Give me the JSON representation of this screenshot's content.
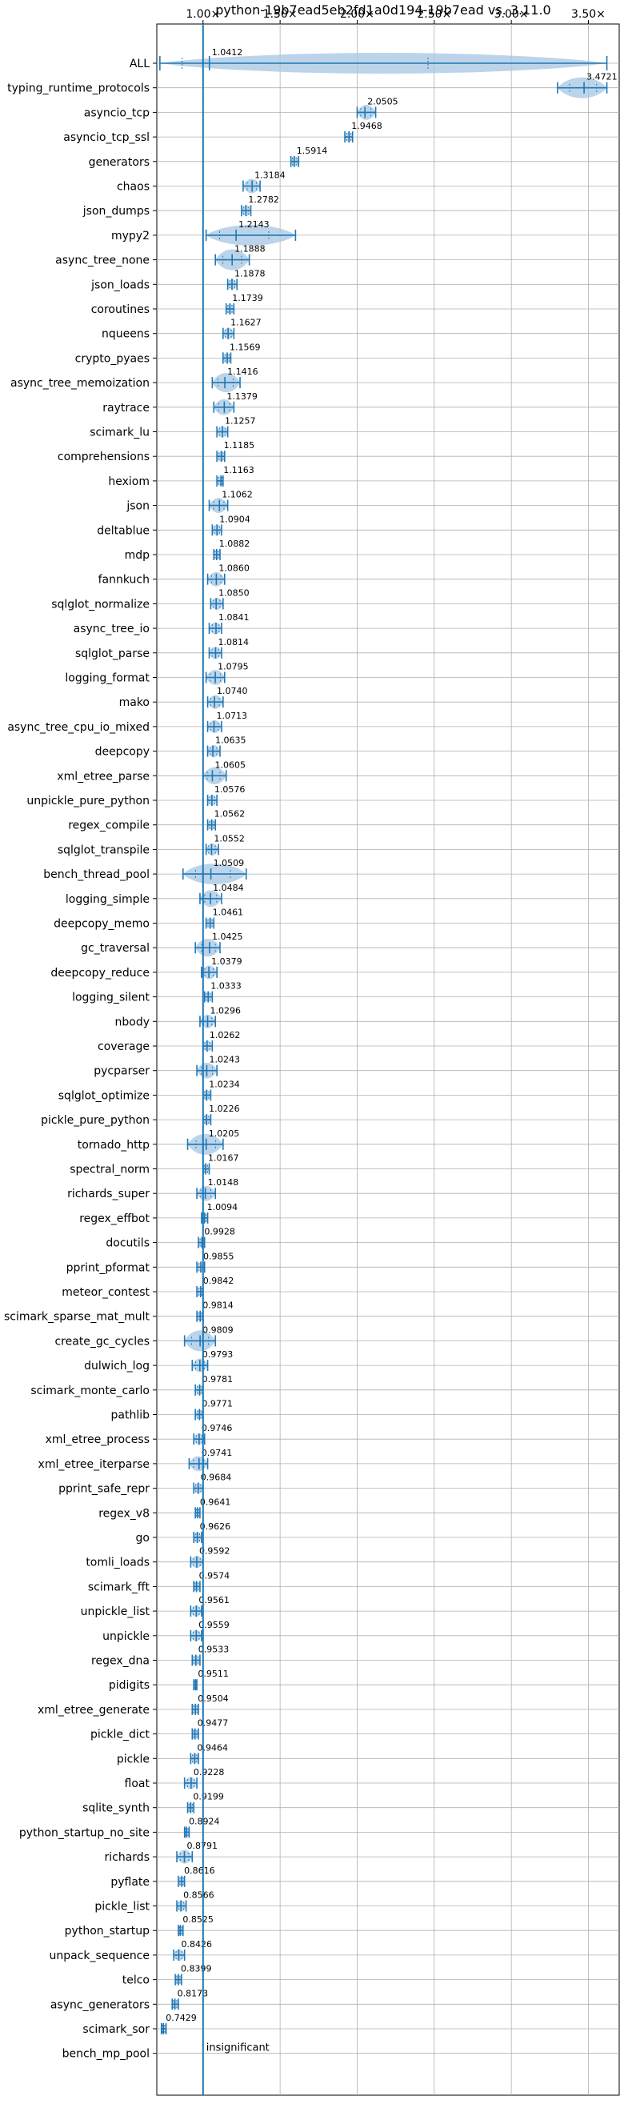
{
  "chart_data": {
    "type": "violin",
    "title": "python-19b7ead5eb2fd1a0d194-19b7ead vs. 3.11.0",
    "x_ticks": [
      "1.00×",
      "1.50×",
      "2.00×",
      "2.50×",
      "3.00×",
      "3.50×"
    ],
    "x_tick_values": [
      1.0,
      1.5,
      2.0,
      2.5,
      3.0,
      3.5
    ],
    "xlim": [
      0.7,
      3.7
    ],
    "reference_line": 1.0,
    "grid": true,
    "benchmarks": [
      {
        "name": "ALL",
        "value": 1.0412,
        "label": "1.0412",
        "min": 0.72,
        "max": 3.62
      },
      {
        "name": "typing_runtime_protocols",
        "value": 3.4721,
        "label": "3.4721",
        "min": 3.3,
        "max": 3.62
      },
      {
        "name": "asyncio_tcp",
        "value": 2.0505,
        "label": "2.0505",
        "min": 2.0,
        "max": 2.12
      },
      {
        "name": "asyncio_tcp_ssl",
        "value": 1.9468,
        "label": "1.9468",
        "min": 1.92,
        "max": 1.97
      },
      {
        "name": "generators",
        "value": 1.5914,
        "label": "1.5914",
        "min": 1.57,
        "max": 1.62
      },
      {
        "name": "chaos",
        "value": 1.3184,
        "label": "1.3184",
        "min": 1.26,
        "max": 1.37
      },
      {
        "name": "json_dumps",
        "value": 1.2782,
        "label": "1.2782",
        "min": 1.25,
        "max": 1.31
      },
      {
        "name": "mypy2",
        "value": 1.2143,
        "label": "1.2143",
        "min": 1.02,
        "max": 1.6
      },
      {
        "name": "async_tree_none",
        "value": 1.1888,
        "label": "1.1888",
        "min": 1.08,
        "max": 1.3
      },
      {
        "name": "json_loads",
        "value": 1.1878,
        "label": "1.1878",
        "min": 1.16,
        "max": 1.22
      },
      {
        "name": "coroutines",
        "value": 1.1739,
        "label": "1.1739",
        "min": 1.15,
        "max": 1.2
      },
      {
        "name": "nqueens",
        "value": 1.1627,
        "label": "1.1627",
        "min": 1.13,
        "max": 1.2
      },
      {
        "name": "crypto_pyaes",
        "value": 1.1569,
        "label": "1.1569",
        "min": 1.13,
        "max": 1.18
      },
      {
        "name": "async_tree_memoization",
        "value": 1.1416,
        "label": "1.1416",
        "min": 1.06,
        "max": 1.24
      },
      {
        "name": "raytrace",
        "value": 1.1379,
        "label": "1.1379",
        "min": 1.07,
        "max": 1.2
      },
      {
        "name": "scimark_lu",
        "value": 1.1257,
        "label": "1.1257",
        "min": 1.09,
        "max": 1.16
      },
      {
        "name": "comprehensions",
        "value": 1.1185,
        "label": "1.1185",
        "min": 1.09,
        "max": 1.14
      },
      {
        "name": "hexiom",
        "value": 1.1163,
        "label": "1.1163",
        "min": 1.09,
        "max": 1.13
      },
      {
        "name": "json",
        "value": 1.1062,
        "label": "1.1062",
        "min": 1.04,
        "max": 1.16
      },
      {
        "name": "deltablue",
        "value": 1.0904,
        "label": "1.0904",
        "min": 1.06,
        "max": 1.12
      },
      {
        "name": "mdp",
        "value": 1.0882,
        "label": "1.0882",
        "min": 1.07,
        "max": 1.11
      },
      {
        "name": "fannkuch",
        "value": 1.086,
        "label": "1.0860",
        "min": 1.03,
        "max": 1.14
      },
      {
        "name": "sqlglot_normalize",
        "value": 1.085,
        "label": "1.0850",
        "min": 1.05,
        "max": 1.13
      },
      {
        "name": "async_tree_io",
        "value": 1.0841,
        "label": "1.0841",
        "min": 1.04,
        "max": 1.12
      },
      {
        "name": "sqlglot_parse",
        "value": 1.0814,
        "label": "1.0814",
        "min": 1.04,
        "max": 1.12
      },
      {
        "name": "logging_format",
        "value": 1.0795,
        "label": "1.0795",
        "min": 1.02,
        "max": 1.14
      },
      {
        "name": "mako",
        "value": 1.074,
        "label": "1.0740",
        "min": 1.03,
        "max": 1.13
      },
      {
        "name": "async_tree_cpu_io_mixed",
        "value": 1.0713,
        "label": "1.0713",
        "min": 1.03,
        "max": 1.12
      },
      {
        "name": "deepcopy",
        "value": 1.0635,
        "label": "1.0635",
        "min": 1.03,
        "max": 1.11
      },
      {
        "name": "xml_etree_parse",
        "value": 1.0605,
        "label": "1.0605",
        "min": 1.0,
        "max": 1.15
      },
      {
        "name": "unpickle_pure_python",
        "value": 1.0576,
        "label": "1.0576",
        "min": 1.03,
        "max": 1.09
      },
      {
        "name": "regex_compile",
        "value": 1.0562,
        "label": "1.0562",
        "min": 1.03,
        "max": 1.08
      },
      {
        "name": "sqlglot_transpile",
        "value": 1.0552,
        "label": "1.0552",
        "min": 1.02,
        "max": 1.1
      },
      {
        "name": "bench_thread_pool",
        "value": 1.0509,
        "label": "1.0509",
        "min": 0.87,
        "max": 1.28
      },
      {
        "name": "logging_simple",
        "value": 1.0484,
        "label": "1.0484",
        "min": 0.98,
        "max": 1.12
      },
      {
        "name": "deepcopy_memo",
        "value": 1.0461,
        "label": "1.0461",
        "min": 1.02,
        "max": 1.07
      },
      {
        "name": "gc_traversal",
        "value": 1.0425,
        "label": "1.0425",
        "min": 0.95,
        "max": 1.11
      },
      {
        "name": "deepcopy_reduce",
        "value": 1.0379,
        "label": "1.0379",
        "min": 0.99,
        "max": 1.09
      },
      {
        "name": "logging_silent",
        "value": 1.0333,
        "label": "1.0333",
        "min": 1.01,
        "max": 1.06
      },
      {
        "name": "nbody",
        "value": 1.0296,
        "label": "1.0296",
        "min": 0.98,
        "max": 1.08
      },
      {
        "name": "coverage",
        "value": 1.0262,
        "label": "1.0262",
        "min": 1.0,
        "max": 1.06
      },
      {
        "name": "pycparser",
        "value": 1.0243,
        "label": "1.0243",
        "min": 0.96,
        "max": 1.09
      },
      {
        "name": "sqlglot_optimize",
        "value": 1.0234,
        "label": "1.0234",
        "min": 1.0,
        "max": 1.05
      },
      {
        "name": "pickle_pure_python",
        "value": 1.0226,
        "label": "1.0226",
        "min": 1.0,
        "max": 1.05
      },
      {
        "name": "tornado_http",
        "value": 1.0205,
        "label": "1.0205",
        "min": 0.9,
        "max": 1.13
      },
      {
        "name": "spectral_norm",
        "value": 1.0167,
        "label": "1.0167",
        "min": 1.0,
        "max": 1.04
      },
      {
        "name": "richards_super",
        "value": 1.0148,
        "label": "1.0148",
        "min": 0.96,
        "max": 1.08
      },
      {
        "name": "regex_effbot",
        "value": 1.0094,
        "label": "1.0094",
        "min": 0.99,
        "max": 1.03
      },
      {
        "name": "docutils",
        "value": 0.9928,
        "label": "0.9928",
        "min": 0.97,
        "max": 1.01
      },
      {
        "name": "pprint_pformat",
        "value": 0.9855,
        "label": "0.9855",
        "min": 0.96,
        "max": 1.01
      },
      {
        "name": "meteor_contest",
        "value": 0.9842,
        "label": "0.9842",
        "min": 0.96,
        "max": 1.0
      },
      {
        "name": "scimark_sparse_mat_mult",
        "value": 0.9814,
        "label": "0.9814",
        "min": 0.96,
        "max": 1.0
      },
      {
        "name": "create_gc_cycles",
        "value": 0.9809,
        "label": "0.9809",
        "min": 0.88,
        "max": 1.08
      },
      {
        "name": "dulwich_log",
        "value": 0.9793,
        "label": "0.9793",
        "min": 0.93,
        "max": 1.03
      },
      {
        "name": "scimark_monte_carlo",
        "value": 0.9781,
        "label": "0.9781",
        "min": 0.95,
        "max": 1.0
      },
      {
        "name": "pathlib",
        "value": 0.9771,
        "label": "0.9771",
        "min": 0.95,
        "max": 1.0
      },
      {
        "name": "xml_etree_process",
        "value": 0.9746,
        "label": "0.9746",
        "min": 0.94,
        "max": 1.01
      },
      {
        "name": "xml_etree_iterparse",
        "value": 0.9741,
        "label": "0.9741",
        "min": 0.91,
        "max": 1.03
      },
      {
        "name": "pprint_safe_repr",
        "value": 0.9684,
        "label": "0.9684",
        "min": 0.94,
        "max": 1.0
      },
      {
        "name": "regex_v8",
        "value": 0.9641,
        "label": "0.9641",
        "min": 0.95,
        "max": 0.98
      },
      {
        "name": "go",
        "value": 0.9626,
        "label": "0.9626",
        "min": 0.94,
        "max": 0.99
      },
      {
        "name": "tomli_loads",
        "value": 0.9592,
        "label": "0.9592",
        "min": 0.92,
        "max": 1.0
      },
      {
        "name": "scimark_fft",
        "value": 0.9574,
        "label": "0.9574",
        "min": 0.94,
        "max": 0.98
      },
      {
        "name": "unpickle_list",
        "value": 0.9561,
        "label": "0.9561",
        "min": 0.92,
        "max": 0.99
      },
      {
        "name": "unpickle",
        "value": 0.9559,
        "label": "0.9559",
        "min": 0.92,
        "max": 0.99
      },
      {
        "name": "regex_dna",
        "value": 0.9533,
        "label": "0.9533",
        "min": 0.93,
        "max": 0.98
      },
      {
        "name": "pidigits",
        "value": 0.9511,
        "label": "0.9511",
        "min": 0.94,
        "max": 0.96
      },
      {
        "name": "xml_etree_generate",
        "value": 0.9504,
        "label": "0.9504",
        "min": 0.93,
        "max": 0.97
      },
      {
        "name": "pickle_dict",
        "value": 0.9477,
        "label": "0.9477",
        "min": 0.93,
        "max": 0.97
      },
      {
        "name": "pickle",
        "value": 0.9464,
        "label": "0.9464",
        "min": 0.92,
        "max": 0.97
      },
      {
        "name": "float",
        "value": 0.9228,
        "label": "0.9228",
        "min": 0.88,
        "max": 0.96
      },
      {
        "name": "sqlite_synth",
        "value": 0.9199,
        "label": "0.9199",
        "min": 0.9,
        "max": 0.94
      },
      {
        "name": "python_startup_no_site",
        "value": 0.8924,
        "label": "0.8924",
        "min": 0.88,
        "max": 0.91
      },
      {
        "name": "richards",
        "value": 0.8791,
        "label": "0.8791",
        "min": 0.83,
        "max": 0.93
      },
      {
        "name": "pyflate",
        "value": 0.8616,
        "label": "0.8616",
        "min": 0.84,
        "max": 0.88
      },
      {
        "name": "pickle_list",
        "value": 0.8566,
        "label": "0.8566",
        "min": 0.83,
        "max": 0.89
      },
      {
        "name": "python_startup",
        "value": 0.8525,
        "label": "0.8525",
        "min": 0.84,
        "max": 0.87
      },
      {
        "name": "unpack_sequence",
        "value": 0.8426,
        "label": "0.8426",
        "min": 0.81,
        "max": 0.88
      },
      {
        "name": "telco",
        "value": 0.8399,
        "label": "0.8399",
        "min": 0.82,
        "max": 0.86
      },
      {
        "name": "async_generators",
        "value": 0.8173,
        "label": "0.8173",
        "min": 0.8,
        "max": 0.84
      },
      {
        "name": "scimark_sor",
        "value": 0.7429,
        "label": "0.7429",
        "min": 0.73,
        "max": 0.76
      },
      {
        "name": "bench_mp_pool",
        "value": null,
        "label": "insignificant"
      }
    ]
  },
  "colors": {
    "violin_fill": "#a6c6e3",
    "line": "#1f77b4",
    "grid": "#b0b0b0"
  }
}
